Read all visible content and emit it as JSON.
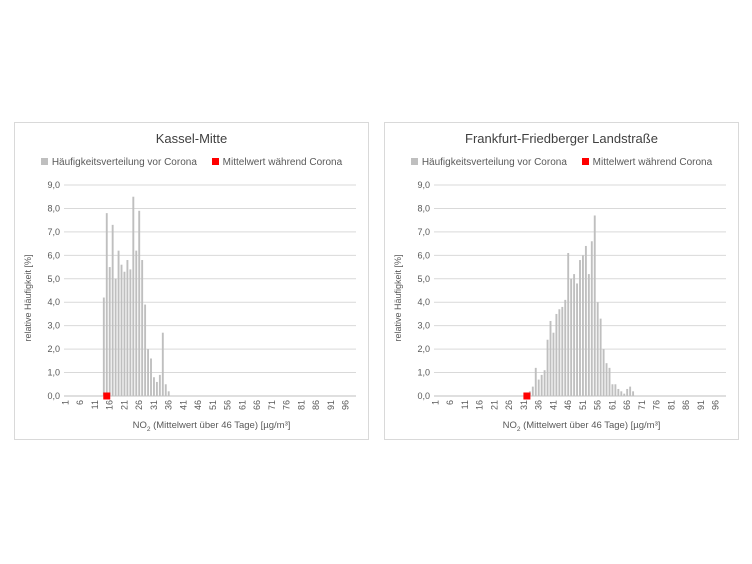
{
  "chart_data": [
    {
      "type": "bar",
      "title": "Kassel-Mitte",
      "legend": [
        "Häufigkeitsverteilung vor Corona",
        "Mittelwert während Corona"
      ],
      "legend_position": "top",
      "xlabel_parts": [
        "NO",
        "2",
        " (Mittelwert über 46 Tage) [µg/m³]"
      ],
      "ylabel": "relative Häufigkeit [%]",
      "ylim": [
        0,
        9
      ],
      "y_ticks": [
        "0,0",
        "1,0",
        "2,0",
        "3,0",
        "4,0",
        "5,0",
        "6,0",
        "7,0",
        "8,0",
        "9,0"
      ],
      "x_ticks": [
        1,
        6,
        11,
        16,
        21,
        26,
        31,
        36,
        41,
        46,
        51,
        56,
        61,
        66,
        71,
        76,
        81,
        86,
        91,
        96
      ],
      "grid": true,
      "series": [
        {
          "name": "Häufigkeitsverteilung vor Corona",
          "color": "#bfbfbf",
          "x": [
            14,
            15,
            16,
            17,
            18,
            19,
            20,
            21,
            22,
            23,
            24,
            25,
            26,
            27,
            28,
            29,
            30,
            31,
            32,
            33,
            34,
            35,
            36
          ],
          "values": [
            4.2,
            7.8,
            5.5,
            7.3,
            5.0,
            6.2,
            5.6,
            5.3,
            5.8,
            5.4,
            8.5,
            6.2,
            7.9,
            5.8,
            3.9,
            2.0,
            1.6,
            0.8,
            0.6,
            0.9,
            2.7,
            0.5,
            0.2
          ]
        },
        {
          "name": "Mittelwert während Corona",
          "color": "#ff0000",
          "x": [
            15
          ],
          "values": [
            0.0
          ]
        }
      ]
    },
    {
      "type": "bar",
      "title": "Frankfurt-Friedberger Landstraße",
      "legend": [
        "Häufigkeitsverteilung vor Corona",
        "Mittelwert während Corona"
      ],
      "legend_position": "top",
      "xlabel_parts": [
        "NO",
        "2",
        " (Mittelwert über 46 Tage) [µg/m³]"
      ],
      "ylabel": "relative Häufigkeit [%]",
      "ylim": [
        0,
        9
      ],
      "y_ticks": [
        "0,0",
        "1,0",
        "2,0",
        "3,0",
        "4,0",
        "5,0",
        "6,0",
        "7,0",
        "8,0",
        "9,0"
      ],
      "x_ticks": [
        1,
        6,
        11,
        16,
        21,
        26,
        31,
        36,
        41,
        46,
        51,
        56,
        61,
        66,
        71,
        76,
        81,
        86,
        91,
        96
      ],
      "grid": true,
      "series": [
        {
          "name": "Häufigkeitsverteilung vor Corona",
          "color": "#bfbfbf",
          "x": [
            33,
            34,
            35,
            36,
            37,
            38,
            39,
            40,
            41,
            42,
            43,
            44,
            45,
            46,
            47,
            48,
            49,
            50,
            51,
            52,
            53,
            54,
            55,
            56,
            57,
            58,
            59,
            60,
            61,
            62,
            63,
            64,
            65,
            66,
            67,
            68
          ],
          "values": [
            0.2,
            0.4,
            1.2,
            0.7,
            0.9,
            1.1,
            2.4,
            3.2,
            2.7,
            3.5,
            3.7,
            3.8,
            4.1,
            6.1,
            5.0,
            5.2,
            4.8,
            5.8,
            6.0,
            6.4,
            5.2,
            6.6,
            7.7,
            4.0,
            3.3,
            2.0,
            1.4,
            1.2,
            0.5,
            0.5,
            0.3,
            0.2,
            0.1,
            0.3,
            0.4,
            0.2
          ]
        },
        {
          "name": "Mittelwert während Corona",
          "color": "#ff0000",
          "x": [
            32
          ],
          "values": [
            0.0
          ]
        }
      ]
    }
  ]
}
